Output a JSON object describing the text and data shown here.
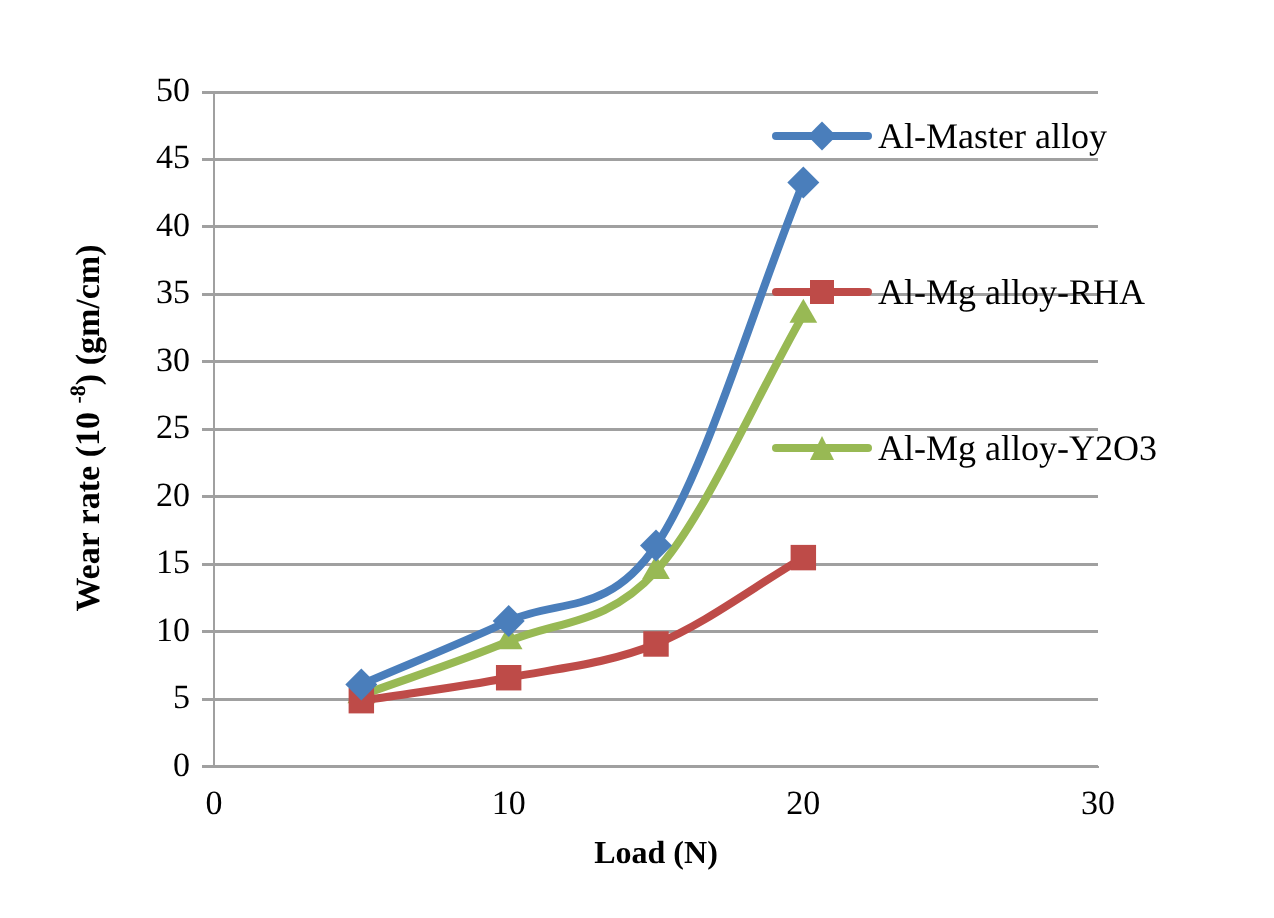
{
  "chart_data": {
    "type": "line",
    "xlabel": "Load (N)",
    "ylabel": "Wear rate (10 $^{-8}$) (gm/cm)",
    "x": [
      5,
      10,
      15,
      20
    ],
    "xlim": [
      0,
      30
    ],
    "xticks": [
      0,
      10,
      20,
      30
    ],
    "ylim": [
      0,
      50
    ],
    "yticks": [
      0,
      5,
      10,
      15,
      20,
      25,
      30,
      35,
      40,
      45,
      50
    ],
    "grid": "y",
    "legend": "right",
    "series": [
      {
        "name": "Al-Master alloy",
        "color": "#4a7ebb",
        "marker": "diamond",
        "values": [
          6.1,
          10.8,
          16.4,
          43.3
        ]
      },
      {
        "name": "Al-Mg alloy-RHA",
        "color": "#be4b48",
        "marker": "square",
        "values": [
          4.9,
          6.6,
          9.1,
          15.5
        ]
      },
      {
        "name": "Al-Mg alloy-Y2O3",
        "color": "#98b954",
        "marker": "triangle",
        "values": [
          5.3,
          9.3,
          14.5,
          33.5
        ]
      }
    ]
  }
}
